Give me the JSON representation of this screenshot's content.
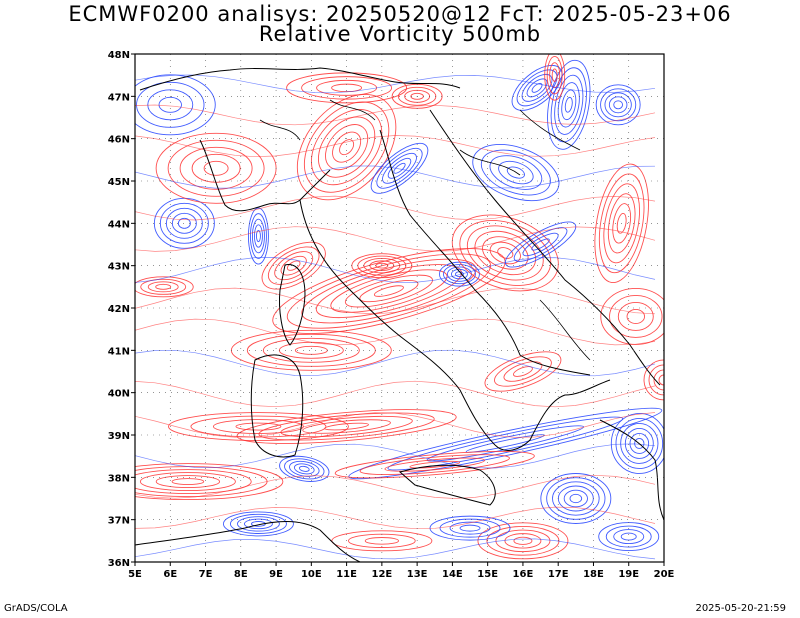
{
  "header": {
    "title_line1": "ECMWF0200 analisys: 20250520@12 FcT: 2025-05-23+06",
    "title_line2": "Relative Vorticity 500mb"
  },
  "map": {
    "lon_range": [
      5,
      20
    ],
    "lat_range": [
      36,
      48
    ],
    "lon_labels": [
      "5E",
      "6E",
      "7E",
      "8E",
      "9E",
      "10E",
      "11E",
      "12E",
      "13E",
      "14E",
      "15E",
      "16E",
      "17E",
      "18E",
      "19E",
      "20E"
    ],
    "lat_labels": [
      "36N",
      "37N",
      "38N",
      "39N",
      "40N",
      "41N",
      "42N",
      "43N",
      "44N",
      "45N",
      "46N",
      "47N",
      "48N"
    ],
    "positive_color": "#ff3030",
    "negative_color": "#2040ff",
    "coast_color": "#000000",
    "grid_style": "dotted"
  },
  "footer": {
    "left": "GrADS/COLA",
    "right": "2025-05-20-21:59"
  }
}
